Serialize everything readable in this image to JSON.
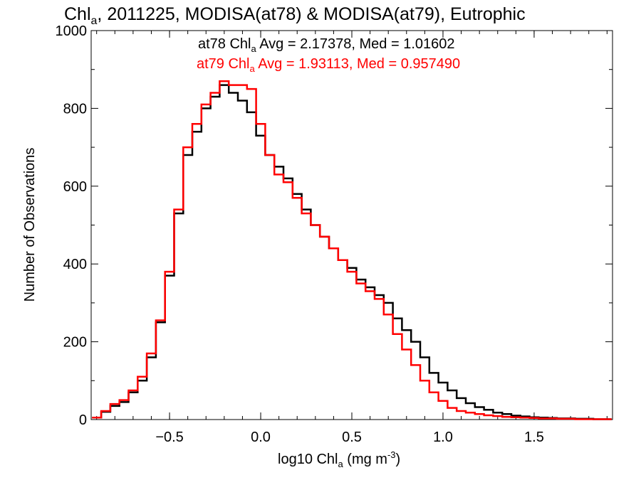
{
  "chart_data": {
    "type": "line",
    "title": {
      "main": "Chl",
      "sub": "a",
      "rest": ", 2011225, MODISA(at78) & MODISA(at79), Eutrophic"
    },
    "xlabel": {
      "main": "log10 Chl",
      "sub": "a",
      "unit_pre": " (mg m",
      "sup": "-3",
      "unit_post": ")"
    },
    "ylabel": "Number of Observations",
    "xlim": [
      -0.93,
      1.93
    ],
    "ylim": [
      0,
      1000
    ],
    "x_ticks": [
      {
        "value": -0.5,
        "label": "−0.5"
      },
      {
        "value": 0.0,
        "label": "0.0"
      },
      {
        "value": 0.5,
        "label": "0.5"
      },
      {
        "value": 1.0,
        "label": "1.0"
      },
      {
        "value": 1.5,
        "label": "1.5"
      }
    ],
    "y_ticks": [
      {
        "value": 0,
        "label": "0"
      },
      {
        "value": 200,
        "label": "200"
      },
      {
        "value": 400,
        "label": "400"
      },
      {
        "value": 600,
        "label": "600"
      },
      {
        "value": 800,
        "label": "800"
      },
      {
        "value": 1000,
        "label": "1000"
      }
    ],
    "annotations": [
      {
        "series": "at78",
        "color": "#000000",
        "pre": "at78 Chl",
        "sub": "a",
        "post": " Avg = 2.17378, Med = 1.01602"
      },
      {
        "series": "at79",
        "color": "#ff0000",
        "pre": "at79 Chl",
        "sub": "a",
        "post": " Avg = 1.93113, Med = 0.957490"
      }
    ],
    "series": [
      {
        "name": "at78",
        "color": "#000000",
        "x": [
          -0.9,
          -0.85,
          -0.8,
          -0.75,
          -0.7,
          -0.65,
          -0.6,
          -0.55,
          -0.5,
          -0.45,
          -0.4,
          -0.35,
          -0.3,
          -0.25,
          -0.2,
          -0.15,
          -0.1,
          -0.05,
          0.0,
          0.05,
          0.1,
          0.15,
          0.2,
          0.25,
          0.3,
          0.35,
          0.4,
          0.45,
          0.5,
          0.55,
          0.6,
          0.65,
          0.7,
          0.75,
          0.8,
          0.85,
          0.9,
          0.95,
          1.0,
          1.05,
          1.1,
          1.15,
          1.2,
          1.25,
          1.3,
          1.35,
          1.4,
          1.45,
          1.5,
          1.55,
          1.6,
          1.65,
          1.7,
          1.75,
          1.8,
          1.85,
          1.9
        ],
        "y": [
          5,
          20,
          35,
          45,
          70,
          100,
          160,
          250,
          370,
          530,
          680,
          740,
          800,
          830,
          860,
          840,
          820,
          790,
          730,
          680,
          650,
          620,
          580,
          540,
          500,
          470,
          440,
          410,
          390,
          360,
          340,
          320,
          300,
          260,
          230,
          200,
          160,
          120,
          95,
          75,
          55,
          42,
          32,
          25,
          18,
          14,
          10,
          8,
          6,
          5,
          4,
          3,
          3,
          2,
          2,
          1,
          1
        ]
      },
      {
        "name": "at79",
        "color": "#ff0000",
        "x": [
          -0.9,
          -0.85,
          -0.8,
          -0.75,
          -0.7,
          -0.65,
          -0.6,
          -0.55,
          -0.5,
          -0.45,
          -0.4,
          -0.35,
          -0.3,
          -0.25,
          -0.2,
          -0.15,
          -0.1,
          -0.05,
          0.0,
          0.05,
          0.1,
          0.15,
          0.2,
          0.25,
          0.3,
          0.35,
          0.4,
          0.45,
          0.5,
          0.55,
          0.6,
          0.65,
          0.7,
          0.75,
          0.8,
          0.85,
          0.9,
          0.95,
          1.0,
          1.05,
          1.1,
          1.15,
          1.2,
          1.25,
          1.3,
          1.35,
          1.4,
          1.45,
          1.5,
          1.55,
          1.6,
          1.65,
          1.7,
          1.75,
          1.8,
          1.85,
          1.9
        ],
        "y": [
          5,
          22,
          40,
          50,
          75,
          110,
          170,
          255,
          380,
          540,
          700,
          760,
          810,
          840,
          870,
          860,
          860,
          850,
          760,
          680,
          630,
          610,
          570,
          530,
          500,
          470,
          440,
          410,
          380,
          350,
          330,
          310,
          270,
          220,
          180,
          140,
          100,
          70,
          48,
          30,
          22,
          18,
          14,
          11,
          9,
          7,
          6,
          5,
          4,
          3,
          3,
          2,
          2,
          1,
          1,
          1,
          1
        ]
      }
    ]
  }
}
